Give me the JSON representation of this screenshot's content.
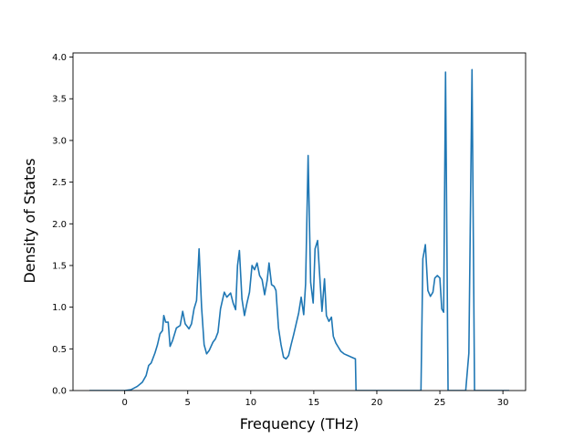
{
  "chart_data": {
    "type": "line",
    "title": "",
    "xlabel": "Frequency (THz)",
    "ylabel": "Density of States",
    "xlim": [
      -4.1,
      31.8
    ],
    "ylim": [
      0.0,
      4.05
    ],
    "grid": false,
    "x_ticks": [
      0,
      5,
      10,
      15,
      20,
      25,
      30
    ],
    "x_tick_labels": [
      "0",
      "5",
      "10",
      "15",
      "20",
      "25",
      "30"
    ],
    "y_ticks": [
      0.0,
      0.5,
      1.0,
      1.5,
      2.0,
      2.5,
      3.0,
      3.5,
      4.0
    ],
    "y_tick_labels": [
      "0.0",
      "0.5",
      "1.0",
      "1.5",
      "2.0",
      "2.5",
      "3.0",
      "3.5",
      "4.0"
    ],
    "line_color": "#1f77b4",
    "series": [
      {
        "points": [
          [
            -2.8,
            0.0
          ],
          [
            0.0,
            0.0
          ],
          [
            0.5,
            0.01
          ],
          [
            1.0,
            0.05
          ],
          [
            1.4,
            0.1
          ],
          [
            1.7,
            0.18
          ],
          [
            1.9,
            0.3
          ],
          [
            2.1,
            0.33
          ],
          [
            2.4,
            0.45
          ],
          [
            2.6,
            0.55
          ],
          [
            2.8,
            0.68
          ],
          [
            3.0,
            0.72
          ],
          [
            3.1,
            0.9
          ],
          [
            3.25,
            0.82
          ],
          [
            3.45,
            0.82
          ],
          [
            3.6,
            0.53
          ],
          [
            3.8,
            0.6
          ],
          [
            4.1,
            0.75
          ],
          [
            4.4,
            0.78
          ],
          [
            4.6,
            0.95
          ],
          [
            4.8,
            0.8
          ],
          [
            5.1,
            0.74
          ],
          [
            5.3,
            0.8
          ],
          [
            5.5,
            0.98
          ],
          [
            5.7,
            1.08
          ],
          [
            5.9,
            1.7
          ],
          [
            6.1,
            1.0
          ],
          [
            6.3,
            0.55
          ],
          [
            6.5,
            0.44
          ],
          [
            6.7,
            0.48
          ],
          [
            7.0,
            0.58
          ],
          [
            7.2,
            0.62
          ],
          [
            7.4,
            0.7
          ],
          [
            7.6,
            0.98
          ],
          [
            7.9,
            1.18
          ],
          [
            8.1,
            1.12
          ],
          [
            8.4,
            1.17
          ],
          [
            8.6,
            1.05
          ],
          [
            8.8,
            0.97
          ],
          [
            8.95,
            1.5
          ],
          [
            9.1,
            1.68
          ],
          [
            9.3,
            1.1
          ],
          [
            9.5,
            0.9
          ],
          [
            9.7,
            1.05
          ],
          [
            9.9,
            1.18
          ],
          [
            10.1,
            1.5
          ],
          [
            10.3,
            1.45
          ],
          [
            10.5,
            1.53
          ],
          [
            10.7,
            1.38
          ],
          [
            10.9,
            1.33
          ],
          [
            11.1,
            1.15
          ],
          [
            11.3,
            1.32
          ],
          [
            11.45,
            1.53
          ],
          [
            11.65,
            1.27
          ],
          [
            11.85,
            1.25
          ],
          [
            12.0,
            1.2
          ],
          [
            12.2,
            0.75
          ],
          [
            12.4,
            0.55
          ],
          [
            12.6,
            0.4
          ],
          [
            12.8,
            0.38
          ],
          [
            13.0,
            0.42
          ],
          [
            13.2,
            0.55
          ],
          [
            13.4,
            0.67
          ],
          [
            13.6,
            0.8
          ],
          [
            13.8,
            0.93
          ],
          [
            14.0,
            1.12
          ],
          [
            14.2,
            0.91
          ],
          [
            14.35,
            1.28
          ],
          [
            14.55,
            2.82
          ],
          [
            14.75,
            1.3
          ],
          [
            14.95,
            1.05
          ],
          [
            15.1,
            1.7
          ],
          [
            15.3,
            1.8
          ],
          [
            15.5,
            1.3
          ],
          [
            15.65,
            0.95
          ],
          [
            15.85,
            1.34
          ],
          [
            16.0,
            0.9
          ],
          [
            16.2,
            0.83
          ],
          [
            16.4,
            0.88
          ],
          [
            16.55,
            0.65
          ],
          [
            16.75,
            0.57
          ],
          [
            16.95,
            0.52
          ],
          [
            17.15,
            0.47
          ],
          [
            17.4,
            0.44
          ],
          [
            17.7,
            0.42
          ],
          [
            18.0,
            0.4
          ],
          [
            18.3,
            0.38
          ],
          [
            18.35,
            0.0
          ],
          [
            23.5,
            0.0
          ],
          [
            23.65,
            1.58
          ],
          [
            23.85,
            1.75
          ],
          [
            24.05,
            1.2
          ],
          [
            24.25,
            1.13
          ],
          [
            24.45,
            1.18
          ],
          [
            24.6,
            1.35
          ],
          [
            24.8,
            1.38
          ],
          [
            25.0,
            1.35
          ],
          [
            25.15,
            0.98
          ],
          [
            25.3,
            0.94
          ],
          [
            25.45,
            3.82
          ],
          [
            25.65,
            0.0
          ],
          [
            26.7,
            0.0
          ],
          [
            27.05,
            0.0
          ],
          [
            27.3,
            0.45
          ],
          [
            27.45,
            2.5
          ],
          [
            27.55,
            3.85
          ],
          [
            27.75,
            0.0
          ],
          [
            30.5,
            0.0
          ]
        ]
      }
    ]
  }
}
